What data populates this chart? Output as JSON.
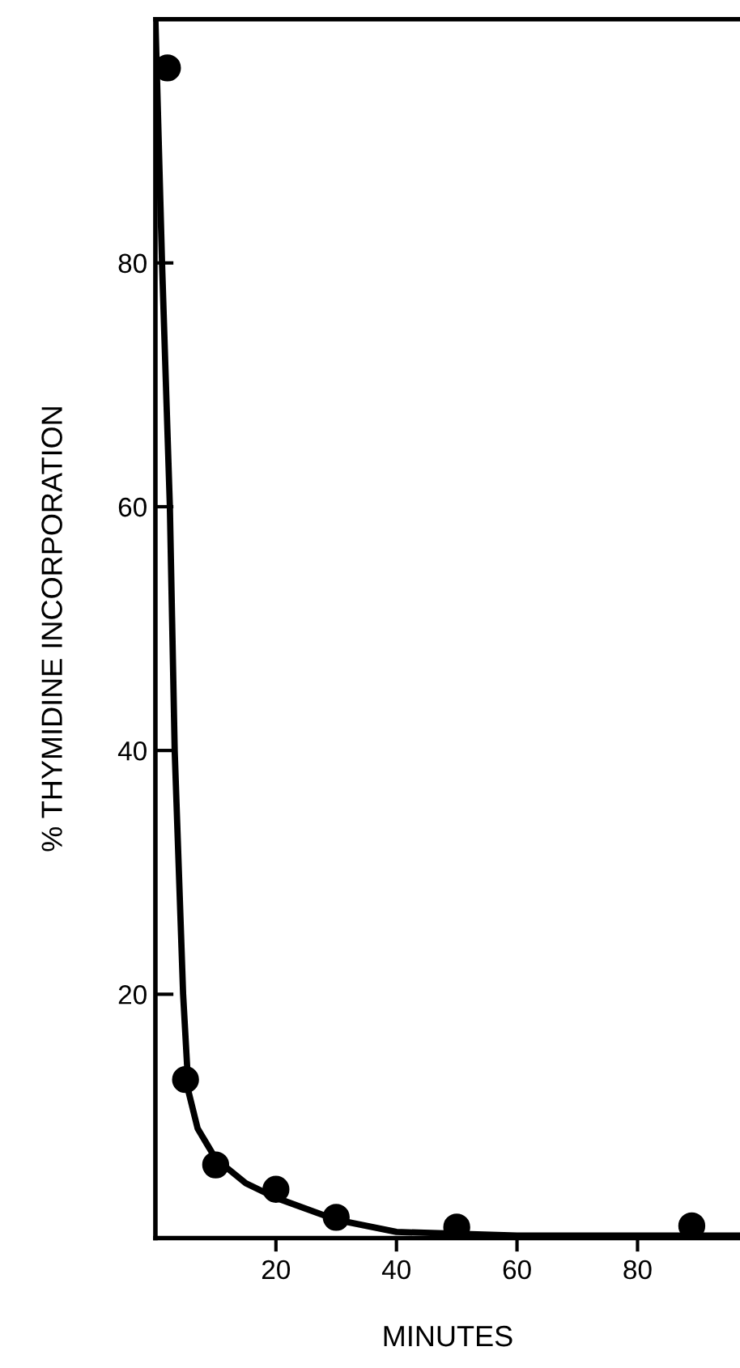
{
  "chart_data": {
    "type": "scatter",
    "xlabel": "MINUTES",
    "ylabel": "% THYMIDINE INCORPORATION",
    "xlim": [
      0,
      97
    ],
    "ylim": [
      0,
      100
    ],
    "xticks": [
      20,
      40,
      60,
      80
    ],
    "yticks": [
      20,
      40,
      60,
      80
    ],
    "grid": false,
    "marker": "circle",
    "series": [
      {
        "color": "#000000",
        "x": [
          2,
          5,
          10,
          20,
          30,
          50,
          89
        ],
        "values": [
          96,
          13,
          6,
          4,
          1.7,
          0.9,
          1
        ]
      },
      {
        "type": "line",
        "color": "#000000",
        "marker": "none",
        "line_style": "solid",
        "x": [
          0,
          1.1,
          2.4,
          3.2,
          4.6,
          5.5,
          7,
          10,
          15,
          20,
          30,
          40,
          60,
          97
        ],
        "values": [
          100,
          80,
          60,
          40,
          20,
          12,
          9,
          6.5,
          4.5,
          3.3,
          1.5,
          0.5,
          0.2,
          0.2
        ]
      }
    ]
  }
}
